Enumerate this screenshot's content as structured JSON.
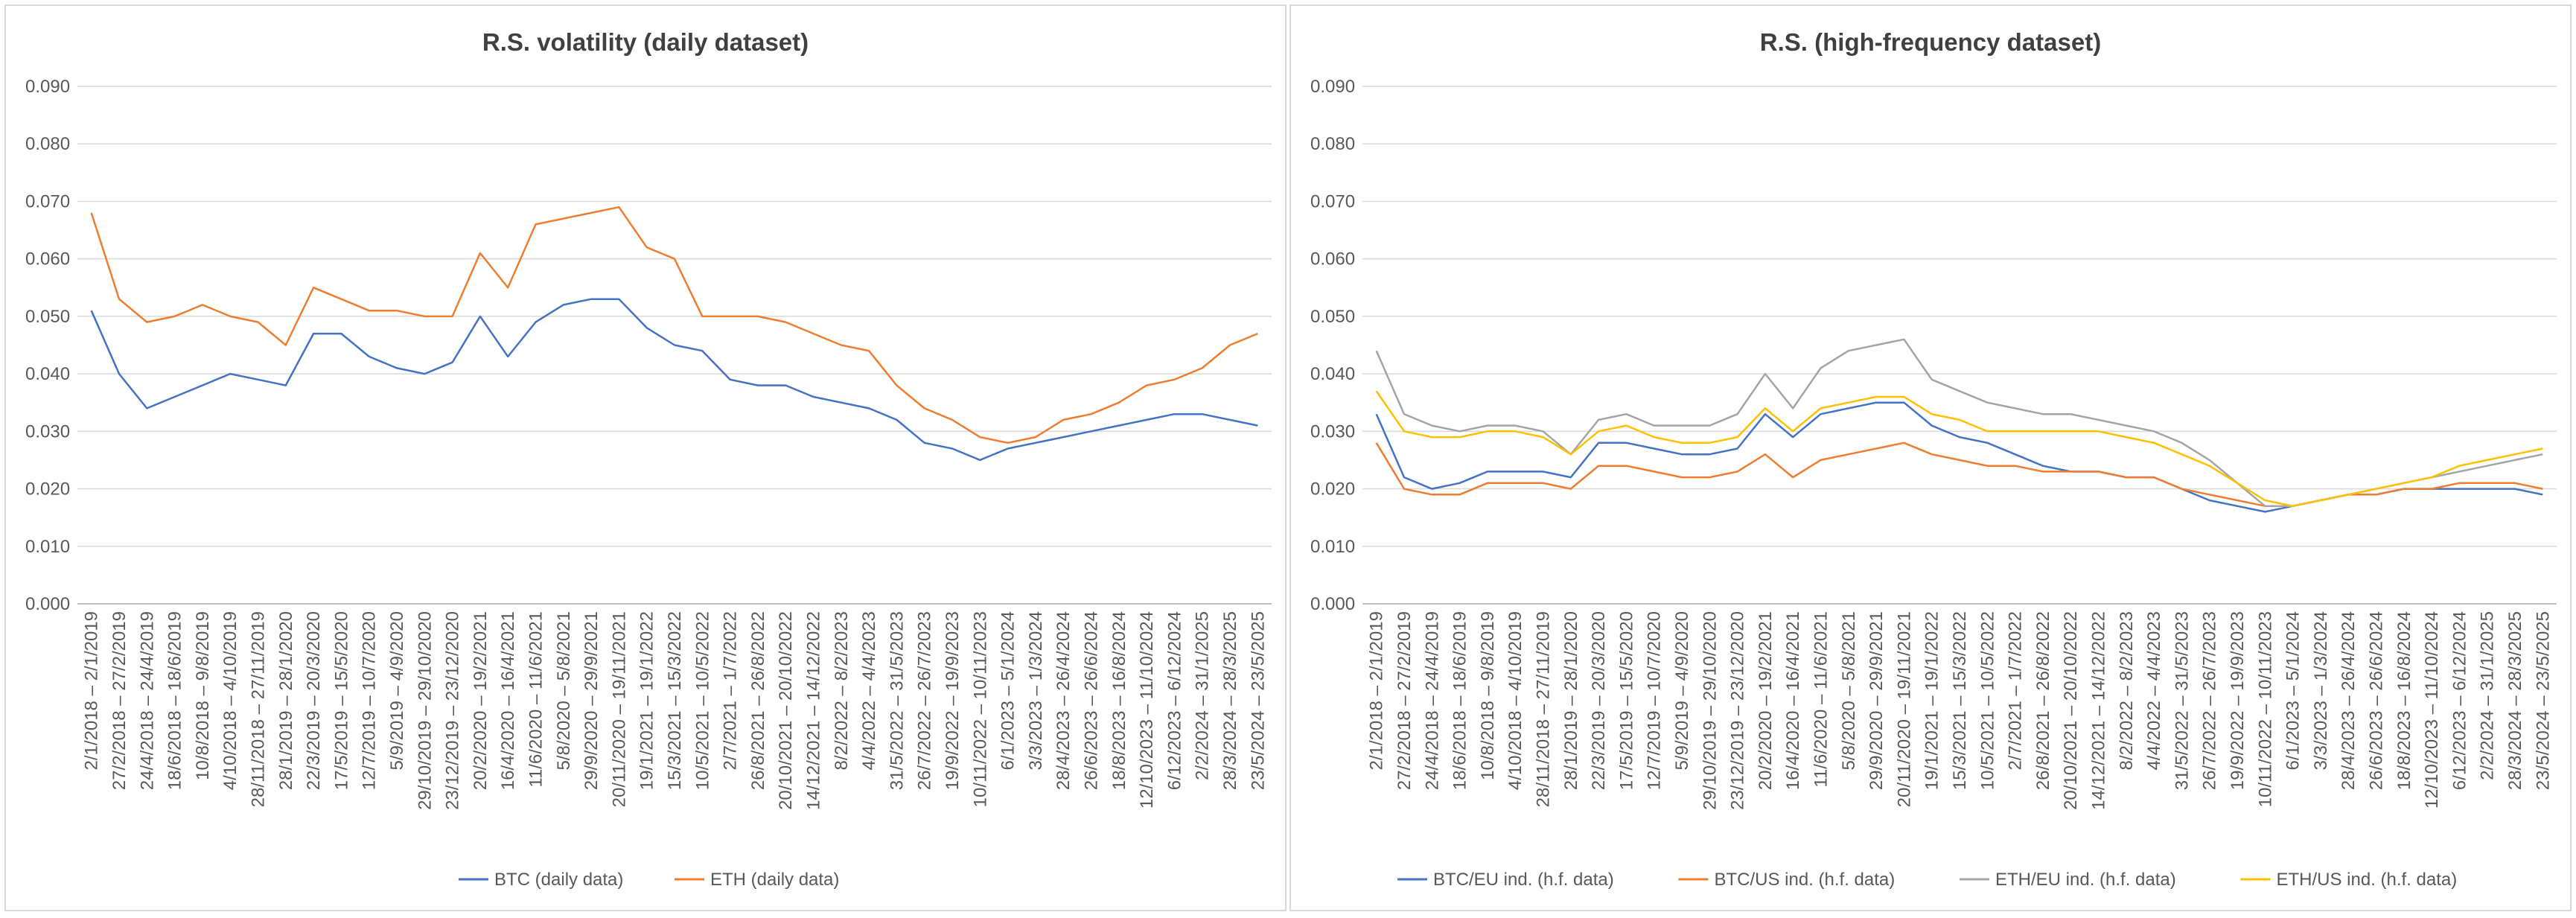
{
  "chart_data": [
    {
      "type": "line",
      "title": "R.S. volatility (daily dataset)",
      "ylim": [
        0,
        0.09
      ],
      "yticks": [
        "0.000",
        "0.010",
        "0.020",
        "0.030",
        "0.040",
        "0.050",
        "0.060",
        "0.070",
        "0.080",
        "0.090"
      ],
      "grid": true,
      "legend_position": "bottom",
      "categories": [
        "2/1/2018 – 2/1/2019",
        "27/2/2018 – 27/2/2019",
        "24/4/2018 – 24/4/2019",
        "18/6/2018 – 18/6/2019",
        "10/8/2018 – 9/8/2019",
        "4/10/2018 – 4/10/2019",
        "28/11/2018 – 27/11/2019",
        "28/1/2019 – 28/1/2020",
        "22/3/2019 – 20/3/2020",
        "17/5/2019 – 15/5/2020",
        "12/7/2019 – 10/7/2020",
        "5/9/2019 – 4/9/2020",
        "29/10/2019 – 29/10/2020",
        "23/12/2019 – 23/12/2020",
        "20/2/2020 – 19/2/2021",
        "16/4/2020 – 16/4/2021",
        "11/6/2020 – 11/6/2021",
        "5/8/2020 – 5/8/2021",
        "29/9/2020 – 29/9/2021",
        "20/11/2020 – 19/11/2021",
        "19/1/2021 – 19/1/2022",
        "15/3/2021 – 15/3/2022",
        "10/5/2021 – 10/5/2022",
        "2/7/2021 – 1/7/2022",
        "26/8/2021 – 26/8/2022",
        "20/10/2021 – 20/10/2022",
        "14/12/2021 – 14/12/2022",
        "8/2/2022 – 8/2/2023",
        "4/4/2022 – 4/4/2023",
        "31/5/2022 – 31/5/2023",
        "26/7/2022 – 26/7/2023",
        "19/9/2022 – 19/9/2023",
        "10/11/2022 – 10/11/2023",
        "6/1/2023 – 5/1/2024",
        "3/3/2023 – 1/3/2024",
        "28/4/2023 – 26/4/2024",
        "26/6/2023 – 26/6/2024",
        "18/8/2023 – 16/8/2024",
        "12/10/2023 – 11/10/2024",
        "6/12/2023 – 6/12/2024",
        "2/2/2024 – 31/1/2025",
        "28/3/2024 – 28/3/2025",
        "23/5/2024 – 23/5/2025"
      ],
      "series": [
        {
          "name": "BTC (daily data)",
          "color": "#4472c4",
          "values": [
            0.051,
            0.04,
            0.034,
            0.036,
            0.038,
            0.04,
            0.039,
            0.038,
            0.047,
            0.047,
            0.043,
            0.041,
            0.04,
            0.042,
            0.05,
            0.043,
            0.049,
            0.052,
            0.053,
            0.053,
            0.048,
            0.045,
            0.044,
            0.039,
            0.038,
            0.038,
            0.036,
            0.035,
            0.034,
            0.032,
            0.028,
            0.027,
            0.025,
            0.027,
            0.028,
            0.029,
            0.03,
            0.031,
            0.032,
            0.033,
            0.033,
            0.032,
            0.031
          ]
        },
        {
          "name": "ETH (daily data)",
          "color": "#ed7d31",
          "values": [
            0.068,
            0.053,
            0.049,
            0.05,
            0.052,
            0.05,
            0.049,
            0.045,
            0.055,
            0.053,
            0.051,
            0.051,
            0.05,
            0.05,
            0.061,
            0.055,
            0.066,
            0.067,
            0.068,
            0.069,
            0.062,
            0.06,
            0.05,
            0.05,
            0.05,
            0.049,
            0.047,
            0.045,
            0.044,
            0.038,
            0.034,
            0.032,
            0.029,
            0.028,
            0.029,
            0.032,
            0.033,
            0.035,
            0.038,
            0.039,
            0.041,
            0.045,
            0.047
          ]
        }
      ]
    },
    {
      "type": "line",
      "title": "R.S. (high-frequency dataset)",
      "ylim": [
        0,
        0.09
      ],
      "yticks": [
        "0.000",
        "0.010",
        "0.020",
        "0.030",
        "0.040",
        "0.050",
        "0.060",
        "0.070",
        "0.080",
        "0.090"
      ],
      "grid": true,
      "legend_position": "bottom",
      "categories": [
        "2/1/2018 – 2/1/2019",
        "27/2/2018 – 27/2/2019",
        "24/4/2018 – 24/4/2019",
        "18/6/2018 – 18/6/2019",
        "10/8/2018 – 9/8/2019",
        "4/10/2018 – 4/10/2019",
        "28/11/2018 – 27/11/2019",
        "28/1/2019 – 28/1/2020",
        "22/3/2019 – 20/3/2020",
        "17/5/2019 – 15/5/2020",
        "12/7/2019 – 10/7/2020",
        "5/9/2019 – 4/9/2020",
        "29/10/2019 – 29/10/2020",
        "23/12/2019 – 23/12/2020",
        "20/2/2020 – 19/2/2021",
        "16/4/2020 – 16/4/2021",
        "11/6/2020 – 11/6/2021",
        "5/8/2020 – 5/8/2021",
        "29/9/2020 – 29/9/2021",
        "20/11/2020 – 19/11/2021",
        "19/1/2021 – 19/1/2022",
        "15/3/2021 – 15/3/2022",
        "10/5/2021 – 10/5/2022",
        "2/7/2021 – 1/7/2022",
        "26/8/2021 – 26/8/2022",
        "20/10/2021 – 20/10/2022",
        "14/12/2021 – 14/12/2022",
        "8/2/2022 – 8/2/2023",
        "4/4/2022 – 4/4/2023",
        "31/5/2022 – 31/5/2023",
        "26/7/2022 – 26/7/2023",
        "19/9/2022 – 19/9/2023",
        "10/11/2022 – 10/11/2023",
        "6/1/2023 – 5/1/2024",
        "3/3/2023 – 1/3/2024",
        "28/4/2023 – 26/4/2024",
        "26/6/2023 – 26/6/2024",
        "18/8/2023 – 16/8/2024",
        "12/10/2023 – 11/10/2024",
        "6/12/2023 – 6/12/2024",
        "2/2/2024 – 31/1/2025",
        "28/3/2024 – 28/3/2025",
        "23/5/2024 – 23/5/2025"
      ],
      "series": [
        {
          "name": "BTC/EU ind. (h.f. data)",
          "color": "#4472c4",
          "values": [
            0.033,
            0.022,
            0.02,
            0.021,
            0.023,
            0.023,
            0.023,
            0.022,
            0.028,
            0.028,
            0.027,
            0.026,
            0.026,
            0.027,
            0.033,
            0.029,
            0.033,
            0.034,
            0.035,
            0.035,
            0.031,
            0.029,
            0.028,
            0.026,
            0.024,
            0.023,
            0.023,
            0.022,
            0.022,
            0.02,
            0.018,
            0.017,
            0.016,
            0.017,
            0.018,
            0.019,
            0.019,
            0.02,
            0.02,
            0.02,
            0.02,
            0.02,
            0.019
          ]
        },
        {
          "name": "BTC/US ind. (h.f. data)",
          "color": "#ed7d31",
          "values": [
            0.028,
            0.02,
            0.019,
            0.019,
            0.021,
            0.021,
            0.021,
            0.02,
            0.024,
            0.024,
            0.023,
            0.022,
            0.022,
            0.023,
            0.026,
            0.022,
            0.025,
            0.026,
            0.027,
            0.028,
            0.026,
            0.025,
            0.024,
            0.024,
            0.023,
            0.023,
            0.023,
            0.022,
            0.022,
            0.02,
            0.019,
            0.018,
            0.017,
            0.017,
            0.018,
            0.019,
            0.019,
            0.02,
            0.02,
            0.021,
            0.021,
            0.021,
            0.02
          ]
        },
        {
          "name": "ETH/EU ind. (h.f. data)",
          "color": "#a5a5a5",
          "values": [
            0.044,
            0.033,
            0.031,
            0.03,
            0.031,
            0.031,
            0.03,
            0.026,
            0.032,
            0.033,
            0.031,
            0.031,
            0.031,
            0.033,
            0.04,
            0.034,
            0.041,
            0.044,
            0.045,
            0.046,
            0.039,
            0.037,
            0.035,
            0.034,
            0.033,
            0.033,
            0.032,
            0.031,
            0.03,
            0.028,
            0.025,
            0.021,
            0.017,
            0.017,
            0.018,
            0.019,
            0.02,
            0.021,
            0.022,
            0.023,
            0.024,
            0.025,
            0.026
          ]
        },
        {
          "name": "ETH/US ind. (h.f. data)",
          "color": "#ffc000",
          "values": [
            0.037,
            0.03,
            0.029,
            0.029,
            0.03,
            0.03,
            0.029,
            0.026,
            0.03,
            0.031,
            0.029,
            0.028,
            0.028,
            0.029,
            0.034,
            0.03,
            0.034,
            0.035,
            0.036,
            0.036,
            0.033,
            0.032,
            0.03,
            0.03,
            0.03,
            0.03,
            0.03,
            0.029,
            0.028,
            0.026,
            0.024,
            0.021,
            0.018,
            0.017,
            0.018,
            0.019,
            0.02,
            0.021,
            0.022,
            0.024,
            0.025,
            0.026,
            0.027
          ]
        }
      ]
    }
  ]
}
